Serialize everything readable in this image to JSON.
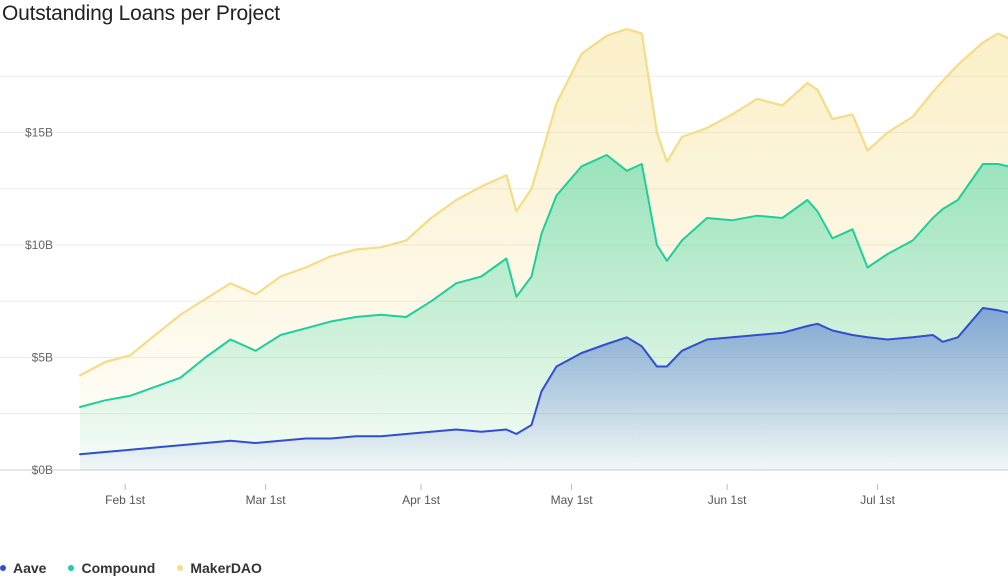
{
  "title": "Outstanding Loans per Project",
  "colors": {
    "Aave": "#2f4fd0",
    "Compound": "#1ecf9a",
    "MakerDAO": "#f5dc85"
  },
  "chart_data": {
    "type": "area",
    "stacked": false,
    "title": "Outstanding Loans per Project",
    "xlabel": "",
    "ylabel": "",
    "ylim": [
      0,
      20
    ],
    "y_unit": "B",
    "xlim": [
      "2021-01-23",
      "2021-07-27"
    ],
    "yticks": [
      0,
      5,
      10,
      15
    ],
    "ytick_labels": [
      "$0B",
      "$5B",
      "$10B",
      "$15B"
    ],
    "xticks": [
      "2021-02-01",
      "2021-03-01",
      "2021-04-01",
      "2021-05-01",
      "2021-06-01",
      "2021-07-01"
    ],
    "xtick_labels": [
      "Feb 1st",
      "Mar 1st",
      "Apr 1st",
      "May 1st",
      "Jun 1st",
      "Jul 1st"
    ],
    "grid": true,
    "legend_position": "bottom-left",
    "x": [
      "2021-01-23",
      "2021-01-28",
      "2021-02-02",
      "2021-02-07",
      "2021-02-12",
      "2021-02-17",
      "2021-02-22",
      "2021-02-27",
      "2021-03-04",
      "2021-03-09",
      "2021-03-14",
      "2021-03-19",
      "2021-03-24",
      "2021-03-29",
      "2021-04-03",
      "2021-04-08",
      "2021-04-13",
      "2021-04-18",
      "2021-04-20",
      "2021-04-23",
      "2021-04-25",
      "2021-04-28",
      "2021-05-03",
      "2021-05-08",
      "2021-05-12",
      "2021-05-15",
      "2021-05-18",
      "2021-05-20",
      "2021-05-23",
      "2021-05-28",
      "2021-06-02",
      "2021-06-07",
      "2021-06-12",
      "2021-06-17",
      "2021-06-19",
      "2021-06-22",
      "2021-06-26",
      "2021-06-29",
      "2021-07-03",
      "2021-07-08",
      "2021-07-12",
      "2021-07-14",
      "2021-07-17",
      "2021-07-22",
      "2021-07-25",
      "2021-07-27"
    ],
    "series": [
      {
        "name": "MakerDAO",
        "values": [
          4.2,
          4.8,
          5.1,
          6.0,
          6.9,
          7.6,
          8.3,
          7.8,
          8.6,
          9.0,
          9.5,
          9.8,
          9.9,
          10.2,
          11.2,
          12.0,
          12.6,
          13.1,
          11.5,
          12.5,
          14.0,
          16.3,
          18.5,
          19.3,
          19.6,
          19.4,
          15.0,
          13.7,
          14.8,
          15.2,
          15.8,
          16.5,
          16.2,
          17.2,
          16.9,
          15.6,
          15.8,
          14.2,
          15.0,
          15.7,
          16.8,
          17.3,
          18.0,
          19.0,
          19.4,
          19.2
        ]
      },
      {
        "name": "Compound",
        "values": [
          2.8,
          3.1,
          3.3,
          3.7,
          4.1,
          5.0,
          5.8,
          5.3,
          6.0,
          6.3,
          6.6,
          6.8,
          6.9,
          6.8,
          7.5,
          8.3,
          8.6,
          9.4,
          7.7,
          8.6,
          10.5,
          12.2,
          13.5,
          14.0,
          13.3,
          13.6,
          10.0,
          9.3,
          10.2,
          11.2,
          11.1,
          11.3,
          11.2,
          12.0,
          11.5,
          10.3,
          10.7,
          9.0,
          9.6,
          10.2,
          11.2,
          11.6,
          12.0,
          13.6,
          13.6,
          13.5
        ]
      },
      {
        "name": "Aave",
        "values": [
          0.7,
          0.8,
          0.9,
          1.0,
          1.1,
          1.2,
          1.3,
          1.2,
          1.3,
          1.4,
          1.4,
          1.5,
          1.5,
          1.6,
          1.7,
          1.8,
          1.7,
          1.8,
          1.6,
          2.0,
          3.5,
          4.6,
          5.2,
          5.6,
          5.9,
          5.5,
          4.6,
          4.6,
          5.3,
          5.8,
          5.9,
          6.0,
          6.1,
          6.4,
          6.5,
          6.2,
          6.0,
          5.9,
          5.8,
          5.9,
          6.0,
          5.7,
          5.9,
          7.2,
          7.1,
          7.0
        ]
      }
    ]
  },
  "legend": [
    {
      "label": "Aave",
      "color": "#2f4fd0"
    },
    {
      "label": "Compound",
      "color": "#1ecf9a"
    },
    {
      "label": "MakerDAO",
      "color": "#f5dc85"
    }
  ]
}
